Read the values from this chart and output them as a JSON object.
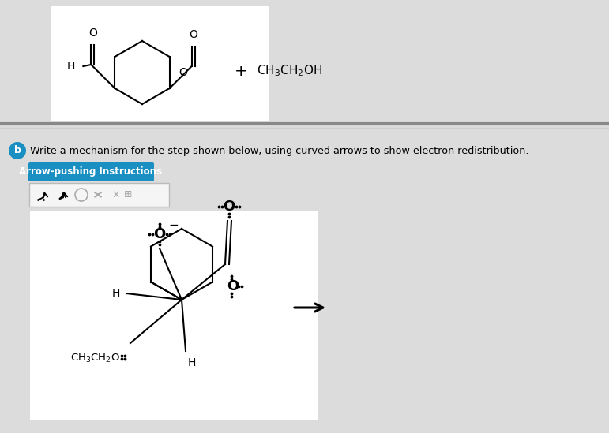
{
  "bg_color": "#dcdcdc",
  "top_panel_bg": "#ffffff",
  "separator_color": "#aaaaaa",
  "bottom_panel_bg": "#f0f0f0",
  "molecule_area_bg": "#ffffff",
  "question_text": "Write a mechanism for the step shown below, using curved arrows to show electron redistribution.",
  "button_text": "Arrow-pushing Instructions",
  "button_bg": "#1a8fc1",
  "button_text_color": "#ffffff",
  "label_bg": "#1a8fc1",
  "label_text": "b"
}
